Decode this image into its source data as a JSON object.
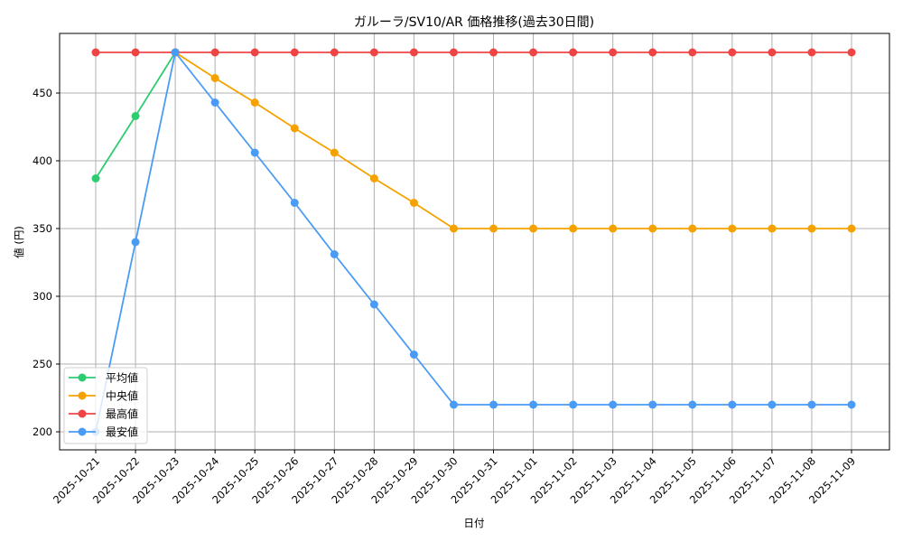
{
  "chart_data": {
    "type": "line",
    "title": "ガルーラ/SV10/AR 価格推移(過去30日間)",
    "xlabel": "日付",
    "ylabel": "値 (円)",
    "ylim": [
      187,
      490
    ],
    "yticks": [
      200,
      250,
      300,
      350,
      400,
      450
    ],
    "grid": true,
    "legend_position": "lower left",
    "categories": [
      "2025-10-21",
      "2025-10-22",
      "2025-10-23",
      "2025-10-24",
      "2025-10-25",
      "2025-10-26",
      "2025-10-27",
      "2025-10-28",
      "2025-10-29",
      "2025-10-30",
      "2025-10-31",
      "2025-11-01",
      "2025-11-02",
      "2025-11-03",
      "2025-11-04",
      "2025-11-05",
      "2025-11-06",
      "2025-11-07",
      "2025-11-08",
      "2025-11-09"
    ],
    "series": [
      {
        "name": "平均値",
        "color": "#2ecc71",
        "values": [
          387,
          433,
          480,
          null,
          null,
          null,
          null,
          null,
          null,
          null,
          null,
          null,
          null,
          null,
          null,
          null,
          null,
          null,
          null,
          null
        ]
      },
      {
        "name": "中央値",
        "color": "#f5a200",
        "values": [
          null,
          null,
          480,
          461,
          443,
          424,
          406,
          387,
          369,
          350,
          350,
          350,
          350,
          350,
          350,
          350,
          350,
          350,
          350,
          350
        ]
      },
      {
        "name": "最高値",
        "color": "#ef4444",
        "values": [
          480,
          480,
          480,
          480,
          480,
          480,
          480,
          480,
          480,
          480,
          480,
          480,
          480,
          480,
          480,
          480,
          480,
          480,
          480,
          480
        ]
      },
      {
        "name": "最安値",
        "color": "#4a9bf5",
        "values": [
          200,
          340,
          480,
          443,
          406,
          369,
          331,
          294,
          257,
          220,
          220,
          220,
          220,
          220,
          220,
          220,
          220,
          220,
          220,
          220
        ]
      }
    ]
  }
}
